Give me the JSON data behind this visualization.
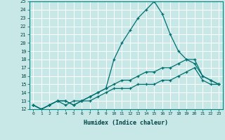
{
  "xlabel": "Humidex (Indice chaleur)",
  "background_color": "#c8e8e8",
  "grid_color": "#ffffff",
  "line_color": "#007070",
  "xlim": [
    -0.5,
    23.5
  ],
  "ylim": [
    12,
    25
  ],
  "xticks": [
    0,
    1,
    2,
    3,
    4,
    5,
    6,
    7,
    8,
    9,
    10,
    11,
    12,
    13,
    14,
    15,
    16,
    17,
    18,
    19,
    20,
    21,
    22,
    23
  ],
  "yticks": [
    12,
    13,
    14,
    15,
    16,
    17,
    18,
    19,
    20,
    21,
    22,
    23,
    24,
    25
  ],
  "series": [
    [
      12.5,
      12.0,
      12.5,
      13.0,
      12.5,
      13.0,
      13.0,
      13.5,
      14.0,
      14.5,
      18.0,
      20.0,
      21.5,
      23.0,
      24.0,
      25.0,
      23.5,
      21.0,
      19.0,
      18.0,
      17.5,
      16.0,
      15.5,
      15.0
    ],
    [
      12.5,
      12.0,
      12.5,
      13.0,
      13.0,
      12.5,
      13.0,
      13.5,
      14.0,
      14.5,
      15.0,
      15.5,
      15.5,
      16.0,
      16.5,
      16.5,
      17.0,
      17.0,
      17.5,
      18.0,
      18.0,
      16.0,
      15.5,
      15.0
    ],
    [
      12.5,
      12.0,
      12.5,
      13.0,
      13.0,
      12.5,
      13.0,
      13.0,
      13.5,
      14.0,
      14.5,
      14.5,
      14.5,
      15.0,
      15.0,
      15.0,
      15.5,
      15.5,
      16.0,
      16.5,
      17.0,
      15.5,
      15.0,
      15.0
    ]
  ]
}
